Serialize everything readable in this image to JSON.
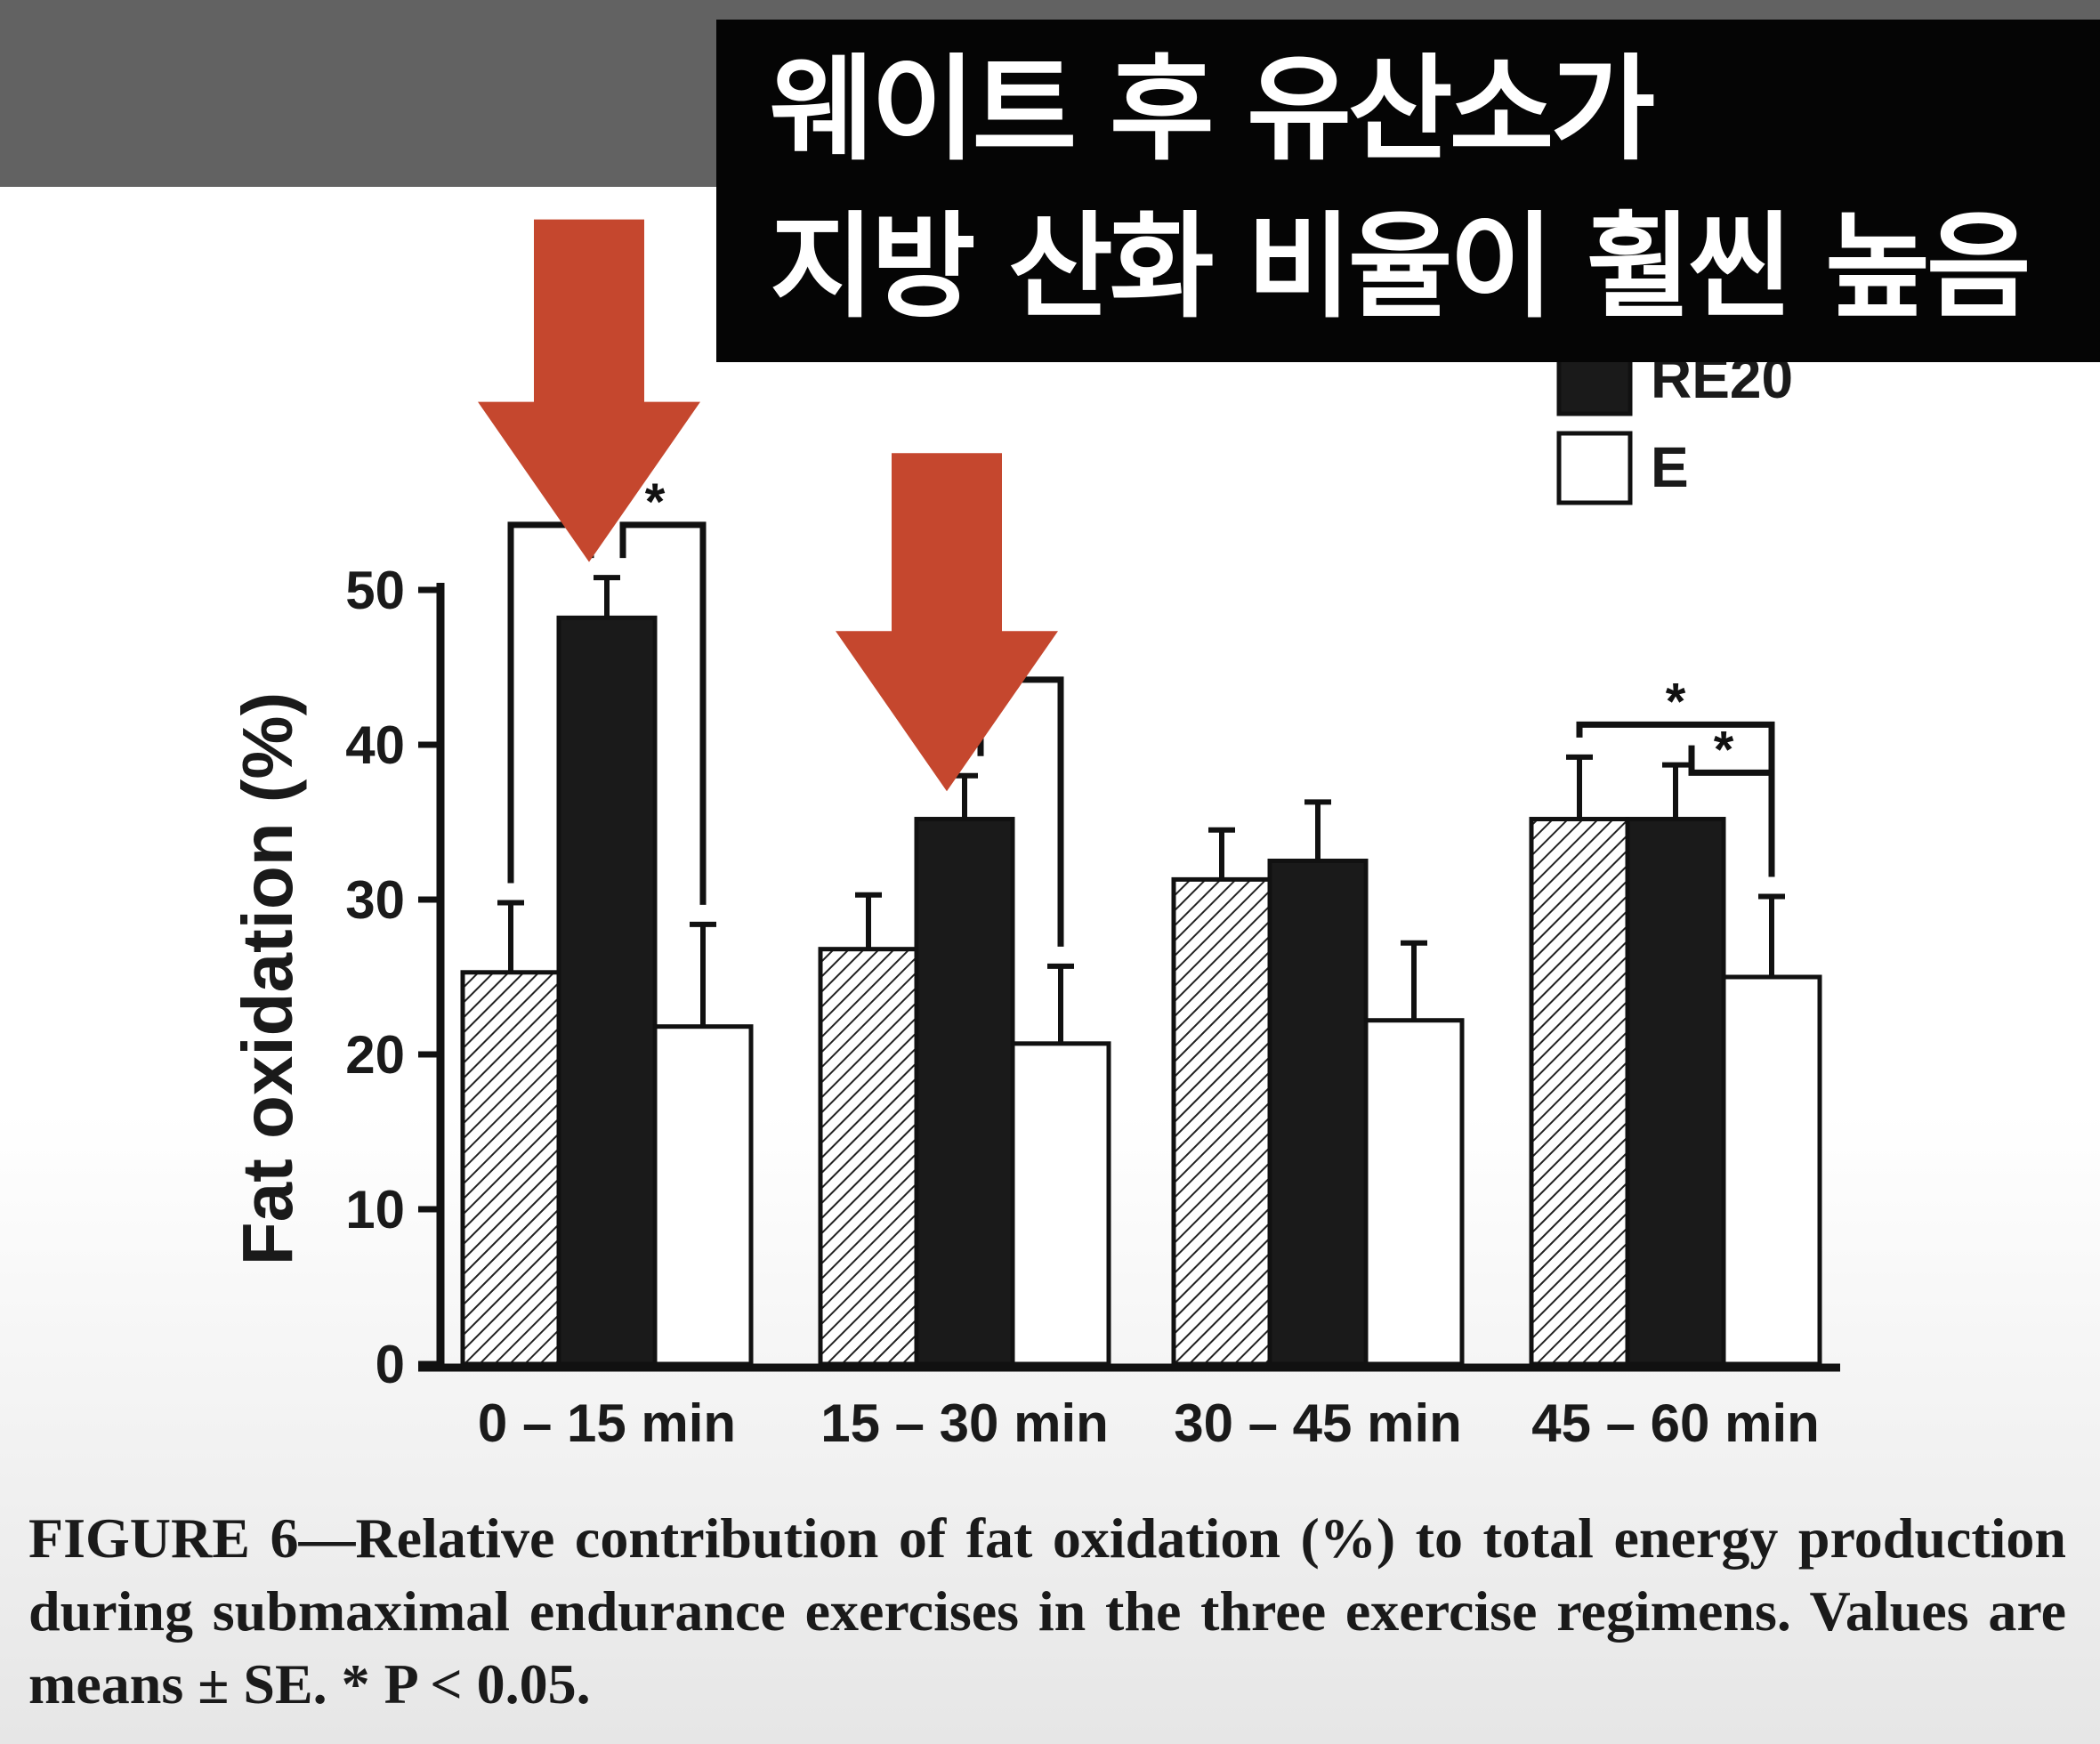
{
  "banner": {
    "line1": "웨이트 후 유산소가",
    "line2": "지방 산화 비율이 훨씬 높음"
  },
  "colors": {
    "topbar": "#626262",
    "banner_bg": "#050505",
    "arrow": "#c5472e",
    "bar_black": "#1a1a1a",
    "bar_white": "#ffffff"
  },
  "chart_data": {
    "type": "bar",
    "ylabel": "Fat oxidation (%)",
    "xlabel": "",
    "ylim": [
      0,
      50
    ],
    "yticks": [
      0,
      10,
      20,
      30,
      40,
      50
    ],
    "categories": [
      "0 – 15 min",
      "15 – 30 min",
      "30 – 45 min",
      "45 – 60 min"
    ],
    "legend_position": "top-right",
    "legend_visible_labels": [
      "RE20",
      "E"
    ],
    "series": [
      {
        "name": "",
        "pattern": "hatched",
        "values": [
          25.3,
          26.8,
          31.3,
          35.2
        ],
        "errors": [
          4.5,
          3.5,
          3.2,
          4.0
        ]
      },
      {
        "name": "RE20",
        "pattern": "black",
        "values": [
          48.2,
          35.2,
          32.5,
          35.2
        ],
        "errors": [
          2.6,
          2.8,
          3.8,
          3.5
        ]
      },
      {
        "name": "E",
        "pattern": "white",
        "values": [
          21.8,
          20.7,
          22.2,
          25.0
        ],
        "errors": [
          6.6,
          5.0,
          5.0,
          5.2
        ]
      }
    ],
    "significance_brackets": [
      {
        "category": 0,
        "from_series": 0,
        "to_series": 1,
        "label": "*"
      },
      {
        "category": 0,
        "from_series": 1,
        "to_series": 2,
        "label": "*"
      },
      {
        "category": 1,
        "from_series": 1,
        "to_series": 2,
        "label": ""
      },
      {
        "category": 3,
        "from_series": 0,
        "to_series": 2,
        "label": "*"
      },
      {
        "category": 3,
        "from_series": 1,
        "to_series": 2,
        "label": "*"
      }
    ],
    "highlight_arrows": [
      {
        "category": 0,
        "series": 1
      },
      {
        "category": 1,
        "series": 1
      }
    ]
  },
  "caption": "FIGURE 6—Relative contribution of fat oxidation (%) to total energy production during submaximal endurance exercises in the three exercise regimens. Values are means ± SE. * P < 0.05."
}
